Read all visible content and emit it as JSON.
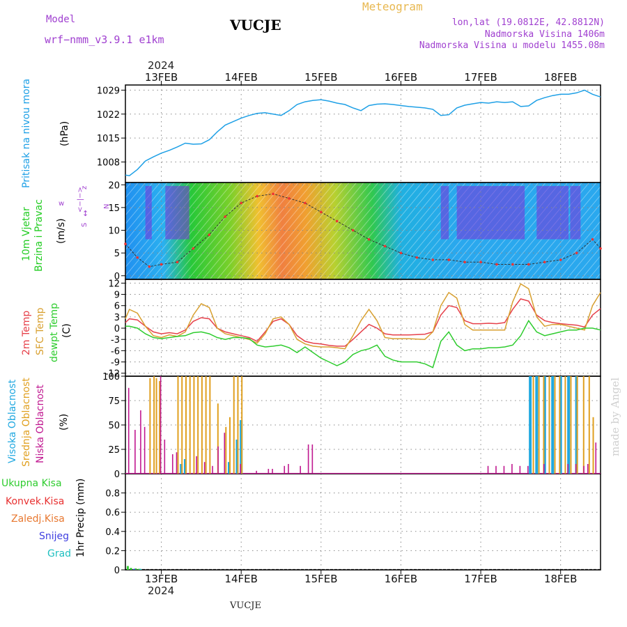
{
  "header": {
    "model_label": "Model",
    "model_name": "wrf−nmm_v3.9.1  e1km",
    "station": "VUCJE",
    "meteogram_label": "Meteogram",
    "coords": "lon,lat (19.0812E, 42.8812N)",
    "altitude": "Nadmorska Visina 1406m",
    "model_altitude": "Nadmorska Visina u modelu 1455.08m",
    "footer_station": "VUCJE",
    "watermark": "made by Angel",
    "year": "2024"
  },
  "colors": {
    "pressure": "#1ea0e6",
    "temp2m": "#e6404a",
    "sfc": "#d8a030",
    "dewpt": "#2ecc2e",
    "high_cloud": "#20a8e0",
    "mid_cloud": "#e0a020",
    "low_cloud": "#c01890",
    "total_precip": "#33cc33",
    "conv": "#e83030",
    "frozen": "#e87830",
    "snow": "#4040e0",
    "grad": "#20c0c0"
  },
  "chart_data": [
    {
      "type": "line",
      "name": "pressure",
      "ylabel_lines": [
        "Pritisak na nivou mora",
        "(hPa)"
      ],
      "ylim": [
        1002,
        1030.5
      ],
      "yticks": [
        1008,
        1015,
        1022,
        1029
      ],
      "x_ticks": [
        "13FEB",
        "14FEB",
        "15FEB",
        "16FEB",
        "17FEB",
        "18FEB"
      ],
      "x_range_days": [
        12.55,
        18.5
      ],
      "x": [
        12.55,
        12.6,
        12.7,
        12.8,
        12.9,
        13.0,
        13.1,
        13.2,
        13.3,
        13.4,
        13.5,
        13.6,
        13.7,
        13.8,
        13.9,
        14.0,
        14.1,
        14.2,
        14.3,
        14.4,
        14.5,
        14.6,
        14.7,
        14.8,
        14.9,
        15.0,
        15.1,
        15.2,
        15.3,
        15.4,
        15.5,
        15.6,
        15.7,
        15.8,
        15.9,
        16.0,
        16.1,
        16.2,
        16.3,
        16.4,
        16.5,
        16.6,
        16.7,
        16.8,
        16.9,
        17.0,
        17.1,
        17.2,
        17.3,
        17.4,
        17.5,
        17.6,
        17.7,
        17.8,
        17.9,
        18.0,
        18.1,
        18.2,
        18.3,
        18.4,
        18.5
      ],
      "y": [
        1004.2,
        1004.0,
        1005.8,
        1008.3,
        1009.5,
        1010.6,
        1011.4,
        1012.4,
        1013.5,
        1013.2,
        1013.3,
        1014.5,
        1016.8,
        1018.8,
        1019.8,
        1020.8,
        1021.6,
        1022.2,
        1022.4,
        1022.0,
        1021.6,
        1023.0,
        1024.8,
        1025.6,
        1026.0,
        1026.2,
        1025.8,
        1025.2,
        1024.8,
        1023.8,
        1023.0,
        1024.5,
        1024.9,
        1025.0,
        1024.8,
        1024.5,
        1024.2,
        1024.0,
        1023.8,
        1023.4,
        1021.6,
        1021.8,
        1023.8,
        1024.6,
        1025.0,
        1025.4,
        1025.2,
        1025.6,
        1025.4,
        1025.6,
        1024.2,
        1024.4,
        1026.0,
        1026.8,
        1027.4,
        1027.8,
        1027.8,
        1028.2,
        1029.0,
        1027.8,
        1027.0
      ]
    },
    {
      "type": "scatter",
      "name": "wind",
      "ylabel_lines": [
        "10m Vjetar",
        "Brzina i Pravac",
        "(m/s)"
      ],
      "compass": [
        "w",
        "<−|−>",
        "z",
        "N",
        "↕",
        "S"
      ],
      "ylim": [
        -0.8,
        20.5
      ],
      "yticks": [
        0,
        5,
        10,
        15,
        20
      ],
      "x": [
        12.55,
        12.7,
        12.85,
        13.0,
        13.2,
        13.4,
        13.6,
        13.8,
        14.0,
        14.2,
        14.4,
        14.6,
        14.8,
        15.0,
        15.2,
        15.4,
        15.6,
        15.8,
        16.0,
        16.2,
        16.4,
        16.6,
        16.8,
        17.0,
        17.2,
        17.4,
        17.6,
        17.8,
        18.0,
        18.2,
        18.4,
        18.5
      ],
      "speed": [
        7.0,
        4.0,
        2.0,
        2.5,
        3.0,
        6.0,
        9.0,
        13.0,
        16.0,
        17.5,
        18.0,
        17.0,
        16.0,
        14.0,
        12.0,
        10.0,
        8.0,
        6.5,
        5.0,
        4.0,
        3.5,
        3.5,
        3.0,
        3.0,
        2.5,
        2.5,
        2.5,
        3.0,
        3.5,
        5.0,
        8.0,
        6.0
      ]
    },
    {
      "type": "line",
      "name": "temperature",
      "ylabel_lines": [
        "2m Temp",
        "SFC Temp",
        "dewpt Temp",
        "(C)"
      ],
      "ylim": [
        -12.8,
        13
      ],
      "yticks": [
        -12,
        -9,
        -6,
        -3,
        0,
        3,
        6,
        9,
        12
      ],
      "x": [
        12.55,
        12.6,
        12.7,
        12.8,
        12.9,
        13.0,
        13.1,
        13.2,
        13.3,
        13.4,
        13.5,
        13.6,
        13.7,
        13.8,
        13.9,
        14.0,
        14.1,
        14.2,
        14.3,
        14.4,
        14.5,
        14.6,
        14.7,
        14.8,
        14.9,
        15.0,
        15.1,
        15.2,
        15.3,
        15.4,
        15.5,
        15.6,
        15.7,
        15.8,
        15.9,
        16.0,
        16.1,
        16.2,
        16.3,
        16.4,
        16.5,
        16.6,
        16.7,
        16.8,
        16.9,
        17.0,
        17.1,
        17.2,
        17.3,
        17.4,
        17.5,
        17.6,
        17.7,
        17.8,
        17.9,
        18.0,
        18.1,
        18.2,
        18.3,
        18.4,
        18.5
      ],
      "series": [
        {
          "name": "2m Temp",
          "color_key": "temp2m",
          "values": [
            1.5,
            2.5,
            2.2,
            0.5,
            -1.0,
            -1.5,
            -1.2,
            -1.5,
            -0.5,
            1.8,
            2.8,
            2.5,
            0.0,
            -1.0,
            -1.5,
            -2.0,
            -2.5,
            -3.5,
            -1.0,
            1.8,
            2.5,
            1.0,
            -2.0,
            -3.5,
            -4.0,
            -4.2,
            -4.6,
            -4.8,
            -4.8,
            -3.0,
            -1.0,
            1.0,
            0.0,
            -1.5,
            -1.8,
            -1.8,
            -1.8,
            -1.7,
            -1.6,
            -1.0,
            3.5,
            6.0,
            5.5,
            2.0,
            1.2,
            1.2,
            1.3,
            1.2,
            1.5,
            5.0,
            7.8,
            7.2,
            3.5,
            2.0,
            1.5,
            1.2,
            1.0,
            0.8,
            0.3,
            3.5,
            5.2
          ]
        },
        {
          "name": "SFC Temp",
          "color_key": "sfc",
          "values": [
            2.5,
            5.0,
            4.0,
            0.5,
            -2.0,
            -2.5,
            -1.8,
            -2.2,
            -1.0,
            3.5,
            6.5,
            5.5,
            0.0,
            -1.5,
            -2.0,
            -2.5,
            -3.0,
            -4.0,
            -1.5,
            2.5,
            3.0,
            1.0,
            -3.0,
            -4.2,
            -4.8,
            -5.0,
            -5.0,
            -5.2,
            -5.5,
            -2.0,
            2.0,
            5.0,
            2.0,
            -2.5,
            -2.8,
            -2.8,
            -2.8,
            -2.9,
            -3.0,
            -1.0,
            6.0,
            9.5,
            8.0,
            1.0,
            -0.5,
            -0.5,
            -0.5,
            -0.5,
            -0.5,
            7.0,
            11.8,
            10.5,
            3.0,
            0.5,
            1.0,
            1.0,
            0.5,
            0.0,
            -0.5,
            6.0,
            9.5
          ]
        },
        {
          "name": "dewpt Temp",
          "color_key": "dewpt",
          "values": [
            0.5,
            0.5,
            0.0,
            -1.5,
            -2.5,
            -2.8,
            -2.5,
            -2.2,
            -2.0,
            -1.2,
            -1.0,
            -1.5,
            -2.5,
            -3.0,
            -2.5,
            -2.5,
            -2.8,
            -4.5,
            -5.0,
            -4.8,
            -4.5,
            -5.2,
            -6.5,
            -5.0,
            -6.5,
            -8.0,
            -9.0,
            -10.0,
            -9.0,
            -7.0,
            -6.0,
            -5.5,
            -4.5,
            -7.5,
            -8.5,
            -9.0,
            -9.0,
            -9.0,
            -9.5,
            -10.5,
            -3.5,
            -1.0,
            -4.5,
            -6.0,
            -5.5,
            -5.5,
            -5.2,
            -5.2,
            -5.0,
            -4.5,
            -2.0,
            2.0,
            -1.0,
            -2.0,
            -1.5,
            -1.0,
            -0.5,
            -0.5,
            0.0,
            0.0,
            -0.5
          ]
        }
      ]
    },
    {
      "type": "bar",
      "name": "cloud_cover",
      "ylabel_lines": [
        "Visoka Oblacnost",
        "Srednja Oblacnost",
        "Niska Oblacnost",
        "(%)"
      ],
      "ylim": [
        0,
        100
      ],
      "yticks": [
        0,
        25,
        50,
        75,
        100
      ],
      "series": [
        {
          "name": "Visoka Oblacnost",
          "color_key": "high_cloud",
          "x": [
            13.25,
            13.3,
            13.85,
            13.95,
            14.0,
            17.62,
            17.7,
            17.8,
            17.9,
            18.0,
            18.1,
            18.2
          ],
          "values": [
            10,
            15,
            12,
            35,
            55,
            100,
            100,
            100,
            100,
            100,
            100,
            100
          ]
        },
        {
          "name": "Srednja Oblacnost",
          "color_key": "mid_cloud",
          "x": [
            12.85,
            12.9,
            12.93,
            12.97,
            13.2,
            13.25,
            13.3,
            13.35,
            13.4,
            13.45,
            13.5,
            13.55,
            13.6,
            13.7,
            13.8,
            13.85,
            13.9,
            13.95,
            14.0,
            17.65,
            17.72,
            17.78,
            17.85,
            17.92,
            17.98,
            18.05,
            18.12,
            18.2,
            18.28,
            18.35,
            18.4
          ],
          "values": [
            98,
            100,
            98,
            95,
            100,
            100,
            100,
            100,
            100,
            100,
            100,
            100,
            100,
            72,
            48,
            58,
            100,
            100,
            100,
            100,
            100,
            100,
            100,
            100,
            100,
            100,
            100,
            100,
            100,
            100,
            58
          ]
        },
        {
          "name": "Niska Oblacnost",
          "color_key": "low_cloud",
          "x": [
            12.6,
            12.68,
            12.75,
            12.8,
            13.0,
            13.05,
            13.15,
            13.2,
            13.45,
            13.55,
            13.65,
            13.72,
            13.8,
            14.0,
            14.2,
            14.35,
            14.4,
            14.55,
            14.6,
            14.75,
            14.85,
            14.9,
            17.1,
            17.2,
            17.3,
            17.4,
            17.5,
            17.6,
            17.8,
            18.1,
            18.2,
            18.3,
            18.35,
            18.45
          ],
          "values": [
            88,
            45,
            65,
            48,
            100,
            35,
            20,
            22,
            18,
            12,
            8,
            28,
            42,
            10,
            3,
            5,
            5,
            8,
            10,
            8,
            30,
            30,
            8,
            8,
            8,
            10,
            8,
            8,
            10,
            10,
            10,
            8,
            10,
            32
          ]
        }
      ]
    },
    {
      "type": "bar",
      "name": "precipitation",
      "ylabel_lines": [
        "1hr Precip (mm)"
      ],
      "legend": [
        "Ukupna  Kisa",
        "Konvek.Kisa",
        "Zaledj.Kisa",
        "Snijeg",
        "Grad"
      ],
      "ylim": [
        0,
        1.0
      ],
      "yticks": [
        0,
        0.2,
        0.4,
        0.6,
        0.8
      ],
      "yticklabels": [
        "0",
        "0.2",
        "0.4",
        "0.6",
        "0.8"
      ],
      "series": [
        {
          "name": "Ukupna  Kisa",
          "color_key": "total_precip",
          "x": [
            12.58,
            12.62,
            12.68,
            12.72
          ],
          "values": [
            0.04,
            0.02,
            0.015,
            0.01
          ]
        },
        {
          "name": "Snijeg",
          "color_key": "snow",
          "x": [
            12.66
          ],
          "values": [
            0.01
          ]
        },
        {
          "name": "Grad",
          "color_key": "grad",
          "x": [
            12.74
          ],
          "values": [
            0.01
          ]
        }
      ]
    }
  ]
}
